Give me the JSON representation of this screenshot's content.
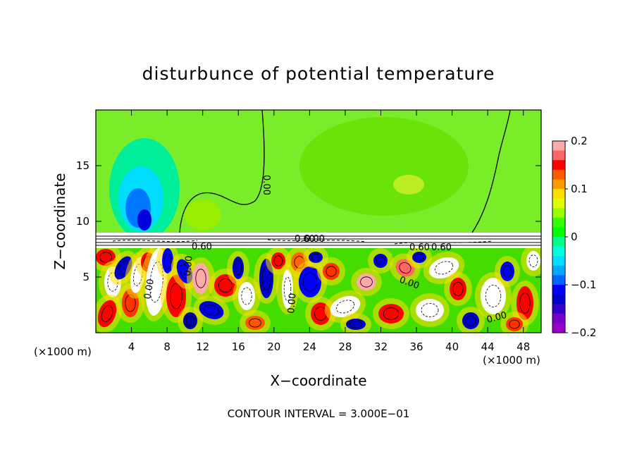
{
  "chart_data": {
    "type": "heatmap",
    "title": "disturbunce of potential temperature",
    "xlabel": "X−coordinate",
    "ylabel": "Z−coordinate",
    "x_unit_left": "(×1000 m)",
    "x_unit_right": "(×1000 m)",
    "xlim": [
      0,
      50
    ],
    "ylim": [
      0,
      20
    ],
    "x_ticks": [
      4,
      8,
      12,
      16,
      20,
      24,
      28,
      32,
      36,
      40,
      44,
      48
    ],
    "y_ticks": [
      5,
      10,
      15
    ],
    "colorbar": {
      "min": -0.2,
      "max": 0.2,
      "tick_values": [
        0.2,
        0.1,
        0,
        -0.1,
        -0.2
      ],
      "tick_labels": [
        "0.2",
        "0.1",
        "0",
        "−0.1",
        "−0.2"
      ],
      "colors": [
        "#ffaaaa",
        "#ff6666",
        "#ff0000",
        "#ff5a00",
        "#ff9900",
        "#ffdd00",
        "#ddff00",
        "#99ff00",
        "#33ff00",
        "#00ff00",
        "#00ff88",
        "#00ffdd",
        "#00ddff",
        "#00aaff",
        "#0066ff",
        "#0000ff",
        "#0000cc",
        "#3300cc",
        "#7700cc",
        "#9900cc"
      ]
    },
    "contour_labels": [
      "0.60",
      "0.60",
      "0.60",
      "0.60",
      "0.00",
      "0.00",
      "0.00",
      "0.00",
      "0.00",
      "0.00",
      "0.00"
    ],
    "footer": "CONTOUR INTERVAL = 3.000E−01"
  }
}
